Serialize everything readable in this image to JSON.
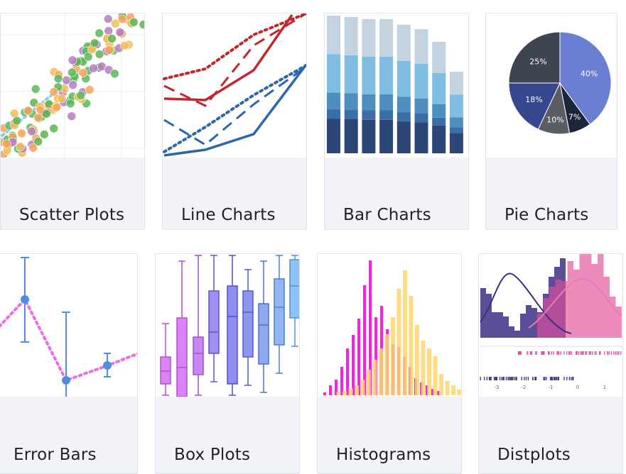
{
  "gallery": {
    "cards": [
      {
        "label": "Scatter Plots",
        "icon": "scatter-plot-thumbnail"
      },
      {
        "label": "Line Charts",
        "icon": "line-chart-thumbnail"
      },
      {
        "label": "Bar Charts",
        "icon": "bar-chart-thumbnail"
      },
      {
        "label": "Pie Charts",
        "icon": "pie-chart-thumbnail"
      },
      {
        "label": "Error Bars",
        "icon": "error-bars-thumbnail"
      },
      {
        "label": "Box Plots",
        "icon": "box-plot-thumbnail"
      },
      {
        "label": "Histograms",
        "icon": "histogram-thumbnail"
      },
      {
        "label": "Distplots",
        "icon": "distplot-thumbnail"
      }
    ]
  },
  "pie": {
    "slices": [
      {
        "label": "40%",
        "value": 40,
        "color": "#6a7fd1"
      },
      {
        "label": "7%",
        "value": 7,
        "color": "#1d2538"
      },
      {
        "label": "10%",
        "value": 10,
        "color": "#5a5d63"
      },
      {
        "label": "18%",
        "value": 18,
        "color": "#36468f"
      },
      {
        "label": "25%",
        "value": 25,
        "color": "#3f4451"
      }
    ]
  },
  "distplot": {
    "axis_ticks": [
      "-3",
      "-2",
      "-1",
      "0",
      "1"
    ]
  },
  "colors": {
    "card_bg": "#f2f3f8",
    "card_border": "#e3e5ee",
    "label_text": "#222222"
  }
}
